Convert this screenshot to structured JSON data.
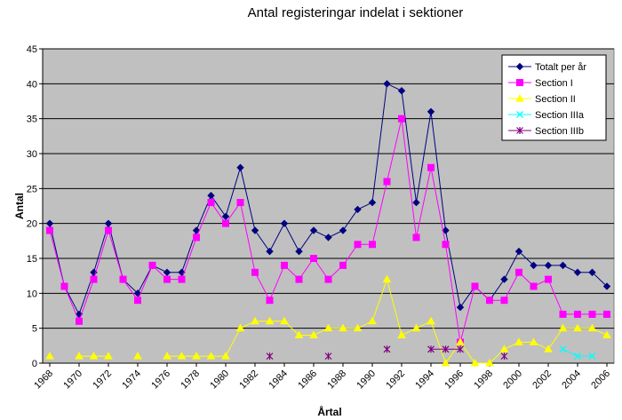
{
  "chart_data": {
    "type": "line",
    "title": "Antal registeringar indelat i sektioner",
    "xlabel": "Årtal",
    "ylabel": "Antal",
    "ylim": [
      0,
      45
    ],
    "y_ticks": [
      0,
      5,
      10,
      15,
      20,
      25,
      30,
      35,
      40,
      45
    ],
    "x_tick_labels": [
      "1968",
      "1970",
      "1972",
      "1974",
      "1976",
      "1978",
      "1980",
      "1982",
      "1984",
      "1986",
      "1988",
      "1990",
      "1992",
      "1994",
      "1996",
      "1998",
      "2000",
      "2002",
      "2004",
      "2006"
    ],
    "x_range": [
      1968,
      2007
    ],
    "grid": "horizontal",
    "plot_background": "#c0c0c0",
    "legend_position": "top-right",
    "series": [
      {
        "name": "Totalt  per år",
        "color": "#000080",
        "marker": "diamond",
        "points": [
          [
            1968,
            20
          ],
          [
            1969,
            11
          ],
          [
            1970,
            7
          ],
          [
            1971,
            13
          ],
          [
            1972,
            20
          ],
          [
            1973,
            12
          ],
          [
            1974,
            10
          ],
          [
            1975,
            14
          ],
          [
            1976,
            13
          ],
          [
            1977,
            13
          ],
          [
            1978,
            19
          ],
          [
            1979,
            24
          ],
          [
            1980,
            21
          ],
          [
            1981,
            28
          ],
          [
            1982,
            19
          ],
          [
            1983,
            16
          ],
          [
            1984,
            20
          ],
          [
            1985,
            16
          ],
          [
            1986,
            19
          ],
          [
            1987,
            18
          ],
          [
            1988,
            19
          ],
          [
            1989,
            22
          ],
          [
            1990,
            23
          ],
          [
            1991,
            40
          ],
          [
            1992,
            39
          ],
          [
            1993,
            23
          ],
          [
            1994,
            36
          ],
          [
            1995,
            19
          ],
          [
            1996,
            8
          ],
          [
            1997,
            11
          ],
          [
            1998,
            9
          ],
          [
            1999,
            12
          ],
          [
            2000,
            16
          ],
          [
            2001,
            14
          ],
          [
            2002,
            14
          ],
          [
            2003,
            14
          ],
          [
            2004,
            13
          ],
          [
            2005,
            13
          ],
          [
            2006,
            11
          ]
        ]
      },
      {
        "name": "Section I",
        "color": "#ff00ff",
        "marker": "square",
        "points": [
          [
            1968,
            19
          ],
          [
            1969,
            11
          ],
          [
            1970,
            6
          ],
          [
            1971,
            12
          ],
          [
            1972,
            19
          ],
          [
            1973,
            12
          ],
          [
            1974,
            9
          ],
          [
            1975,
            14
          ],
          [
            1976,
            12
          ],
          [
            1977,
            12
          ],
          [
            1978,
            18
          ],
          [
            1979,
            23
          ],
          [
            1980,
            20
          ],
          [
            1981,
            23
          ],
          [
            1982,
            13
          ],
          [
            1983,
            9
          ],
          [
            1984,
            14
          ],
          [
            1985,
            12
          ],
          [
            1986,
            15
          ],
          [
            1987,
            12
          ],
          [
            1988,
            14
          ],
          [
            1989,
            17
          ],
          [
            1990,
            17
          ],
          [
            1991,
            26
          ],
          [
            1992,
            35
          ],
          [
            1993,
            18
          ],
          [
            1994,
            28
          ],
          [
            1995,
            17
          ],
          [
            1996,
            3
          ],
          [
            1997,
            11
          ],
          [
            1998,
            9
          ],
          [
            1999,
            9
          ],
          [
            2000,
            13
          ],
          [
            2001,
            11
          ],
          [
            2002,
            12
          ],
          [
            2003,
            7
          ],
          [
            2004,
            7
          ],
          [
            2005,
            7
          ],
          [
            2006,
            7
          ]
        ]
      },
      {
        "name": "Section II",
        "color": "#ffff00",
        "marker": "triangle",
        "segments": [
          [
            [
              1968,
              1
            ]
          ],
          [
            [
              1970,
              1
            ],
            [
              1971,
              1
            ],
            [
              1972,
              1
            ]
          ],
          [
            [
              1974,
              1
            ]
          ],
          [
            [
              1976,
              1
            ],
            [
              1977,
              1
            ],
            [
              1978,
              1
            ],
            [
              1979,
              1
            ],
            [
              1980,
              1
            ],
            [
              1981,
              5
            ],
            [
              1982,
              6
            ],
            [
              1983,
              6
            ],
            [
              1984,
              6
            ],
            [
              1985,
              4
            ],
            [
              1986,
              4
            ],
            [
              1987,
              5
            ],
            [
              1988,
              5
            ],
            [
              1989,
              5
            ],
            [
              1990,
              6
            ],
            [
              1991,
              12
            ],
            [
              1992,
              4
            ],
            [
              1993,
              5
            ],
            [
              1994,
              6
            ],
            [
              1995,
              0
            ],
            [
              1996,
              3
            ],
            [
              1997,
              0
            ],
            [
              1998,
              0
            ],
            [
              1999,
              2
            ],
            [
              2000,
              3
            ],
            [
              2001,
              3
            ],
            [
              2002,
              2
            ],
            [
              2003,
              5
            ],
            [
              2004,
              5
            ],
            [
              2005,
              5
            ],
            [
              2006,
              4
            ]
          ]
        ]
      },
      {
        "name": "Section IIIa",
        "color": "#00ffff",
        "marker": "x",
        "segments": [
          [
            [
              2003,
              2
            ],
            [
              2004,
              1
            ],
            [
              2005,
              1
            ]
          ]
        ]
      },
      {
        "name": "Section IIIb",
        "color": "#800080",
        "marker": "star",
        "segments": [
          [
            [
              1983,
              1
            ]
          ],
          [
            [
              1987,
              1
            ]
          ],
          [
            [
              1991,
              2
            ]
          ],
          [
            [
              1994,
              2
            ],
            [
              1995,
              2
            ],
            [
              1996,
              2
            ]
          ],
          [
            [
              1999,
              1
            ]
          ]
        ]
      }
    ]
  }
}
